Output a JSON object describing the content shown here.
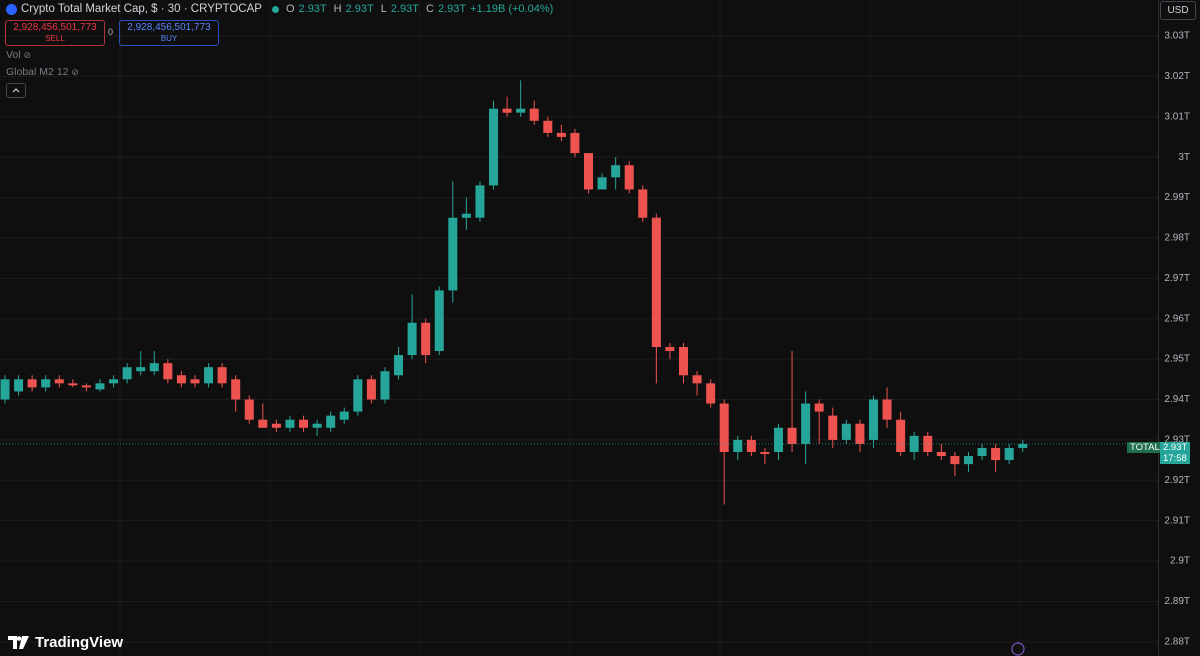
{
  "chart_data": {
    "type": "candlestick",
    "title": "Crypto Total Market Cap, $ · 30 · CRYPTOCAP",
    "legend": {
      "o_label": "O",
      "o": "2.93T",
      "h_label": "H",
      "h": "2.93T",
      "l_label": "L",
      "l": "2.93T",
      "c_label": "C",
      "c": "2.93T",
      "change": "+1.19B (+0.04%)"
    },
    "trade": {
      "sell_price": "2,928,456,501,773",
      "sell": "SELL",
      "spread": "0",
      "buy_price": "2,928,456,501,773",
      "buy": "BUY"
    },
    "indicators": [
      "Vol",
      "Global M2 12"
    ],
    "currency": "USD",
    "price_label": {
      "symbol": "TOTAL",
      "price": "2.93T",
      "countdown": "17:58"
    },
    "brand": "TradingView",
    "up_color": "#26a69a",
    "down_color": "#ef5350",
    "ylim": [
      2.8765,
      3.0389
    ],
    "yticks": [
      {
        "value": 3.03,
        "label": "3.03T"
      },
      {
        "value": 3.02,
        "label": "3.02T"
      },
      {
        "value": 3.01,
        "label": "3.01T"
      },
      {
        "value": 3.0,
        "label": "3T"
      },
      {
        "value": 2.99,
        "label": "2.99T"
      },
      {
        "value": 2.98,
        "label": "2.98T"
      },
      {
        "value": 2.97,
        "label": "2.97T"
      },
      {
        "value": 2.96,
        "label": "2.96T"
      },
      {
        "value": 2.95,
        "label": "2.95T"
      },
      {
        "value": 2.94,
        "label": "2.94T"
      },
      {
        "value": 2.93,
        "label": "2.93T"
      },
      {
        "value": 2.92,
        "label": "2.92T"
      },
      {
        "value": 2.91,
        "label": "2.91T"
      },
      {
        "value": 2.9,
        "label": "2.9T"
      },
      {
        "value": 2.89,
        "label": "2.89T"
      },
      {
        "value": 2.88,
        "label": "2.88T"
      }
    ],
    "grid": true,
    "open": [
      2.94,
      2.942,
      2.945,
      2.943,
      2.945,
      2.944,
      2.9435,
      2.9425,
      2.944,
      2.945,
      2.947,
      2.947,
      2.949,
      2.946,
      2.945,
      2.944,
      2.948,
      2.945,
      2.94,
      2.935,
      2.934,
      2.933,
      2.935,
      2.933,
      2.933,
      2.935,
      2.937,
      2.945,
      2.94,
      2.946,
      2.951,
      2.959,
      2.952,
      2.967,
      2.985,
      2.985,
      2.993,
      3.012,
      3.011,
      3.012,
      3.009,
      3.006,
      3.006,
      3.001,
      2.992,
      2.995,
      2.998,
      2.992,
      2.985,
      2.953,
      2.953,
      2.946,
      2.944,
      2.939,
      2.927,
      2.93,
      2.927,
      2.927,
      2.933,
      2.929,
      2.939,
      2.936,
      2.93,
      2.934,
      2.93,
      2.94,
      2.935,
      2.927,
      2.931,
      2.927,
      2.926,
      2.924,
      2.926,
      2.928,
      2.925,
      2.928
    ],
    "high": [
      2.946,
      2.946,
      2.946,
      2.946,
      2.946,
      2.945,
      2.944,
      2.945,
      2.946,
      2.949,
      2.952,
      2.952,
      2.95,
      2.947,
      2.946,
      2.949,
      2.949,
      2.946,
      2.941,
      2.939,
      2.935,
      2.936,
      2.936,
      2.935,
      2.937,
      2.938,
      2.946,
      2.946,
      2.948,
      2.953,
      2.966,
      2.96,
      2.968,
      2.994,
      2.99,
      2.994,
      3.014,
      3.015,
      3.019,
      3.014,
      3.01,
      3.008,
      3.007,
      3.001,
      2.996,
      3.0,
      2.999,
      2.993,
      2.986,
      2.954,
      2.954,
      2.947,
      2.945,
      2.94,
      2.931,
      2.931,
      2.928,
      2.934,
      2.952,
      2.942,
      2.94,
      2.938,
      2.935,
      2.935,
      2.941,
      2.943,
      2.937,
      2.932,
      2.932,
      2.929,
      2.927,
      2.927,
      2.929,
      2.929,
      2.929,
      2.93
    ],
    "low": [
      2.939,
      2.941,
      2.942,
      2.942,
      2.943,
      2.943,
      2.942,
      2.942,
      2.943,
      2.944,
      2.946,
      2.946,
      2.944,
      2.943,
      2.943,
      2.943,
      2.943,
      2.937,
      2.934,
      2.933,
      2.932,
      2.932,
      2.932,
      2.931,
      2.932,
      2.934,
      2.936,
      2.939,
      2.939,
      2.945,
      2.95,
      2.949,
      2.951,
      2.964,
      2.982,
      2.984,
      2.992,
      3.01,
      3.01,
      3.008,
      3.005,
      3.004,
      3.0,
      2.991,
      2.992,
      2.992,
      2.991,
      2.984,
      2.944,
      2.95,
      2.944,
      2.941,
      2.938,
      2.914,
      2.925,
      2.926,
      2.924,
      2.925,
      2.927,
      2.924,
      2.929,
      2.928,
      2.929,
      2.927,
      2.928,
      2.933,
      2.926,
      2.925,
      2.926,
      2.925,
      2.921,
      2.922,
      2.925,
      2.922,
      2.924,
      2.927
    ],
    "close": [
      2.945,
      2.945,
      2.943,
      2.945,
      2.944,
      2.9435,
      2.943,
      2.944,
      2.945,
      2.948,
      2.948,
      2.949,
      2.945,
      2.944,
      2.944,
      2.948,
      2.944,
      2.94,
      2.935,
      2.933,
      2.933,
      2.935,
      2.933,
      2.934,
      2.936,
      2.937,
      2.945,
      2.94,
      2.947,
      2.951,
      2.959,
      2.951,
      2.967,
      2.985,
      2.986,
      2.993,
      3.012,
      3.011,
      3.012,
      3.009,
      3.006,
      3.005,
      3.001,
      2.992,
      2.995,
      2.998,
      2.992,
      2.985,
      2.953,
      2.952,
      2.946,
      2.944,
      2.939,
      2.927,
      2.93,
      2.927,
      2.9265,
      2.933,
      2.929,
      2.939,
      2.937,
      2.93,
      2.934,
      2.929,
      2.94,
      2.935,
      2.927,
      2.931,
      2.927,
      2.926,
      2.924,
      2.926,
      2.928,
      2.925,
      2.928,
      2.929
    ]
  }
}
